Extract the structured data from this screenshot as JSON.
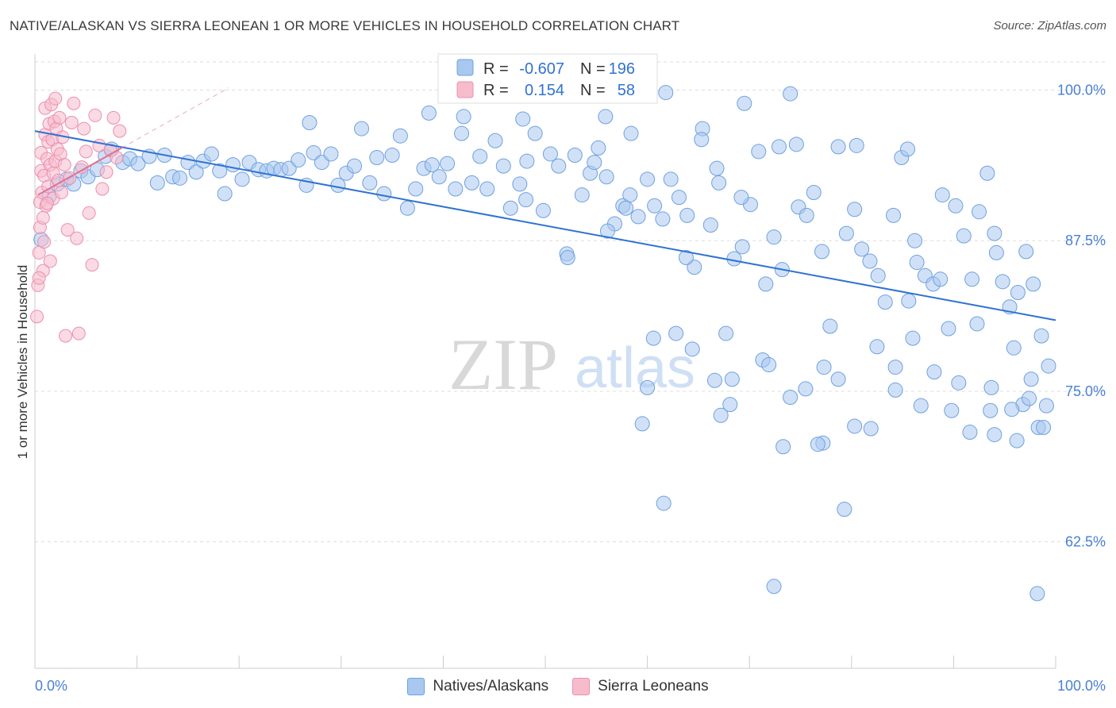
{
  "title": "NATIVE/ALASKAN VS SIERRA LEONEAN 1 OR MORE VEHICLES IN HOUSEHOLD CORRELATION CHART",
  "source": "Source: ZipAtlas.com",
  "watermark": {
    "zip": "ZIP",
    "atlas": "atlas"
  },
  "colors": {
    "blue_fill": "#a9c8f0",
    "blue_stroke": "#6fa0e0",
    "blue_line": "#2f72d2",
    "pink_fill": "#f6bccd",
    "pink_stroke": "#ec8fac",
    "pink_line": "#e2708f",
    "axis_label": "#4a7fd4",
    "grid": "#dddddd"
  },
  "stats": [
    {
      "r_label": "R =",
      "r_value": "-0.607",
      "n_label": "N =",
      "n_value": "196"
    },
    {
      "r_label": "R =",
      "r_value": "0.154",
      "n_label": "N =",
      "n_value": "58"
    }
  ],
  "legend": [
    {
      "label": "Natives/Alaskans",
      "color": "blue"
    },
    {
      "label": "Sierra Leoneans",
      "color": "pink"
    }
  ],
  "chart_data": {
    "type": "scatter",
    "title": "NATIVE/ALASKAN VS SIERRA LEONEAN 1 OR MORE VEHICLES IN HOUSEHOLD CORRELATION CHART",
    "xlabel": "",
    "ylabel": "1 or more Vehicles in Household",
    "xlim": [
      0,
      100
    ],
    "ylim": [
      52,
      103
    ],
    "x_tick_labels": [
      "0.0%",
      "100.0%"
    ],
    "y_ticks": [
      100,
      87.5,
      75,
      62.5
    ],
    "y_tick_labels": [
      "100.0%",
      "87.5%",
      "75.0%",
      "62.5%"
    ],
    "series": [
      {
        "name": "Natives/Alaskans",
        "r": -0.607,
        "n": 196,
        "trend": {
          "x": [
            0,
            100
          ],
          "y": [
            96.6,
            80.9
          ]
        },
        "points": [
          [
            0.6,
            87.6
          ],
          [
            1.4,
            91.2
          ],
          [
            2.2,
            92.2
          ],
          [
            3.1,
            92.6
          ],
          [
            3.8,
            92.2
          ],
          [
            4.5,
            93.3
          ],
          [
            5.2,
            92.8
          ],
          [
            6.1,
            93.4
          ],
          [
            6.9,
            94.5
          ],
          [
            7.5,
            95.1
          ],
          [
            8.6,
            94.0
          ],
          [
            9.3,
            94.3
          ],
          [
            10.1,
            93.9
          ],
          [
            11.2,
            94.5
          ],
          [
            12.0,
            92.3
          ],
          [
            12.7,
            94.6
          ],
          [
            13.5,
            92.8
          ],
          [
            14.2,
            92.7
          ],
          [
            15.0,
            94.0
          ],
          [
            15.8,
            93.2
          ],
          [
            16.5,
            94.1
          ],
          [
            17.3,
            94.7
          ],
          [
            18.1,
            93.3
          ],
          [
            18.6,
            91.4
          ],
          [
            19.4,
            93.8
          ],
          [
            20.3,
            92.6
          ],
          [
            21.0,
            94.0
          ],
          [
            21.9,
            93.4
          ],
          [
            22.7,
            93.3
          ],
          [
            23.4,
            93.5
          ],
          [
            24.1,
            93.4
          ],
          [
            24.9,
            93.5
          ],
          [
            25.8,
            94.2
          ],
          [
            26.6,
            92.1
          ],
          [
            27.3,
            94.8
          ],
          [
            28.1,
            94.0
          ],
          [
            29.0,
            94.7
          ],
          [
            29.7,
            92.1
          ],
          [
            30.5,
            93.1
          ],
          [
            31.3,
            93.7
          ],
          [
            32.0,
            96.8
          ],
          [
            32.8,
            92.3
          ],
          [
            33.5,
            94.4
          ],
          [
            34.2,
            91.4
          ],
          [
            35.0,
            94.6
          ],
          [
            35.8,
            96.2
          ],
          [
            36.5,
            90.2
          ],
          [
            37.3,
            91.8
          ],
          [
            38.1,
            93.5
          ],
          [
            38.9,
            93.8
          ],
          [
            39.6,
            92.8
          ],
          [
            40.4,
            93.9
          ],
          [
            41.2,
            91.8
          ],
          [
            42.0,
            97.8
          ],
          [
            42.8,
            92.3
          ],
          [
            43.6,
            94.5
          ],
          [
            44.3,
            91.8
          ],
          [
            45.1,
            95.8
          ],
          [
            45.9,
            93.7
          ],
          [
            46.6,
            90.2
          ],
          [
            47.5,
            92.2
          ],
          [
            48.2,
            94.1
          ],
          [
            49.0,
            96.4
          ],
          [
            49.8,
            90.0
          ],
          [
            50.5,
            94.7
          ],
          [
            51.3,
            93.7
          ],
          [
            52.1,
            86.4
          ],
          [
            52.9,
            94.6
          ],
          [
            53.6,
            91.3
          ],
          [
            54.4,
            93.1
          ],
          [
            55.2,
            95.2
          ],
          [
            56.0,
            92.8
          ],
          [
            56.8,
            88.9
          ],
          [
            57.6,
            90.4
          ],
          [
            58.3,
            91.3
          ],
          [
            59.1,
            89.5
          ],
          [
            60.0,
            92.6
          ],
          [
            60.7,
            90.4
          ],
          [
            61.5,
            89.3
          ],
          [
            62.3,
            92.6
          ],
          [
            63.1,
            91.1
          ],
          [
            63.9,
            89.6
          ],
          [
            64.6,
            85.3
          ],
          [
            65.4,
            96.8
          ],
          [
            66.2,
            88.8
          ],
          [
            67.0,
            92.3
          ],
          [
            67.7,
            79.8
          ],
          [
            68.5,
            86.0
          ],
          [
            69.3,
            87.0
          ],
          [
            70.1,
            90.5
          ],
          [
            70.9,
            94.9
          ],
          [
            71.6,
            83.9
          ],
          [
            72.4,
            87.8
          ],
          [
            73.2,
            85.1
          ],
          [
            74.0,
            99.7
          ],
          [
            74.8,
            90.3
          ],
          [
            75.6,
            89.6
          ],
          [
            76.3,
            91.5
          ],
          [
            77.1,
            86.6
          ],
          [
            77.9,
            80.4
          ],
          [
            78.7,
            95.3
          ],
          [
            79.5,
            88.1
          ],
          [
            80.3,
            90.1
          ],
          [
            81.0,
            86.8
          ],
          [
            81.8,
            85.8
          ],
          [
            82.6,
            84.6
          ],
          [
            83.3,
            82.4
          ],
          [
            84.1,
            89.6
          ],
          [
            84.9,
            94.4
          ],
          [
            85.6,
            82.5
          ],
          [
            86.4,
            85.7
          ],
          [
            87.2,
            84.6
          ],
          [
            88.0,
            83.9
          ],
          [
            88.7,
            84.3
          ],
          [
            89.5,
            80.2
          ],
          [
            90.2,
            90.4
          ],
          [
            91.0,
            87.9
          ],
          [
            91.8,
            84.3
          ],
          [
            92.5,
            89.9
          ],
          [
            93.3,
            93.1
          ],
          [
            94.0,
            88.1
          ],
          [
            94.8,
            84.1
          ],
          [
            95.5,
            82.0
          ],
          [
            96.3,
            83.2
          ],
          [
            97.1,
            86.6
          ],
          [
            97.8,
            83.9
          ],
          [
            98.6,
            79.6
          ],
          [
            99.3,
            77.1
          ],
          [
            26.9,
            97.3
          ],
          [
            38.6,
            98.1
          ],
          [
            41.8,
            96.4
          ],
          [
            47.8,
            97.6
          ],
          [
            55.9,
            97.8
          ],
          [
            61.8,
            99.8
          ],
          [
            69.5,
            98.9
          ],
          [
            72.9,
            95.3
          ],
          [
            85.5,
            95.1
          ],
          [
            65.3,
            95.9
          ],
          [
            80.5,
            95.4
          ],
          [
            74.6,
            95.5
          ],
          [
            57.9,
            90.2
          ],
          [
            66.8,
            93.5
          ],
          [
            58.4,
            96.4
          ],
          [
            69.2,
            91.1
          ],
          [
            63.8,
            86.1
          ],
          [
            56.1,
            88.3
          ],
          [
            48.1,
            90.9
          ],
          [
            52.2,
            86.1
          ],
          [
            54.8,
            94.0
          ],
          [
            88.9,
            91.3
          ],
          [
            86.2,
            87.5
          ],
          [
            94.2,
            86.5
          ],
          [
            92.3,
            80.6
          ],
          [
            95.9,
            78.6
          ],
          [
            97.6,
            76.0
          ],
          [
            99.1,
            73.8
          ],
          [
            90.5,
            75.7
          ],
          [
            96.2,
            70.9
          ],
          [
            93.7,
            75.3
          ],
          [
            98.3,
            72.0
          ],
          [
            86.0,
            79.4
          ],
          [
            84.3,
            77.0
          ],
          [
            77.3,
            77.0
          ],
          [
            75.5,
            75.2
          ],
          [
            71.3,
            77.6
          ],
          [
            66.6,
            75.9
          ],
          [
            59.5,
            72.3
          ],
          [
            68.1,
            73.9
          ],
          [
            60.6,
            79.4
          ],
          [
            62.8,
            79.8
          ],
          [
            74.0,
            74.5
          ],
          [
            84.3,
            75.1
          ],
          [
            94.0,
            71.4
          ],
          [
            80.3,
            72.1
          ],
          [
            77.2,
            70.7
          ],
          [
            96.8,
            73.9
          ],
          [
            98.8,
            72.0
          ],
          [
            95.7,
            73.5
          ],
          [
            89.8,
            73.4
          ],
          [
            81.9,
            71.9
          ],
          [
            61.6,
            65.7
          ],
          [
            76.7,
            70.6
          ],
          [
            79.3,
            65.2
          ],
          [
            73.3,
            70.4
          ],
          [
            67.2,
            73.0
          ],
          [
            68.3,
            76.0
          ],
          [
            71.9,
            77.2
          ],
          [
            78.7,
            76.0
          ],
          [
            82.5,
            78.7
          ],
          [
            60.0,
            75.3
          ],
          [
            64.4,
            78.5
          ],
          [
            72.4,
            58.8
          ],
          [
            98.2,
            58.2
          ],
          [
            86.8,
            73.8
          ],
          [
            88.1,
            76.6
          ],
          [
            93.6,
            73.4
          ],
          [
            97.4,
            74.4
          ],
          [
            91.6,
            71.6
          ]
        ]
      },
      {
        "name": "Sierra Leoneans",
        "r": 0.154,
        "n": 58,
        "trend": {
          "x": [
            0.3,
            8.5
          ],
          "y": [
            91.3,
            95.2
          ]
        },
        "points": [
          [
            0.2,
            81.2
          ],
          [
            0.3,
            83.8
          ],
          [
            0.4,
            86.5
          ],
          [
            0.5,
            88.6
          ],
          [
            0.5,
            90.7
          ],
          [
            0.6,
            93.3
          ],
          [
            0.6,
            94.8
          ],
          [
            0.7,
            91.5
          ],
          [
            0.8,
            89.4
          ],
          [
            0.8,
            85.0
          ],
          [
            0.9,
            92.9
          ],
          [
            1.0,
            96.3
          ],
          [
            1.0,
            98.5
          ],
          [
            1.1,
            90.4
          ],
          [
            1.2,
            94.3
          ],
          [
            1.3,
            92.0
          ],
          [
            1.3,
            95.7
          ],
          [
            1.4,
            97.2
          ],
          [
            1.5,
            93.8
          ],
          [
            1.5,
            85.8
          ],
          [
            1.6,
            98.8
          ],
          [
            1.7,
            95.9
          ],
          [
            1.8,
            93.1
          ],
          [
            1.8,
            91.0
          ],
          [
            1.9,
            97.4
          ],
          [
            2.0,
            94.1
          ],
          [
            2.0,
            99.3
          ],
          [
            2.1,
            96.8
          ],
          [
            2.2,
            95.1
          ],
          [
            2.3,
            92.5
          ],
          [
            2.4,
            97.7
          ],
          [
            2.5,
            94.7
          ],
          [
            2.6,
            91.5
          ],
          [
            2.7,
            96.1
          ],
          [
            2.9,
            93.8
          ],
          [
            3.0,
            79.6
          ],
          [
            3.2,
            88.4
          ],
          [
            3.4,
            92.7
          ],
          [
            3.6,
            97.3
          ],
          [
            3.8,
            98.9
          ],
          [
            4.1,
            87.7
          ],
          [
            4.3,
            79.8
          ],
          [
            4.6,
            93.6
          ],
          [
            4.8,
            96.8
          ],
          [
            5.0,
            94.9
          ],
          [
            5.3,
            89.8
          ],
          [
            5.6,
            85.5
          ],
          [
            5.9,
            97.9
          ],
          [
            6.3,
            95.4
          ],
          [
            6.6,
            91.8
          ],
          [
            7.0,
            93.2
          ],
          [
            7.4,
            95.0
          ],
          [
            7.7,
            97.7
          ],
          [
            8.0,
            94.4
          ],
          [
            8.3,
            96.6
          ],
          [
            0.4,
            84.4
          ],
          [
            0.9,
            87.4
          ],
          [
            1.2,
            90.6
          ]
        ]
      }
    ]
  }
}
